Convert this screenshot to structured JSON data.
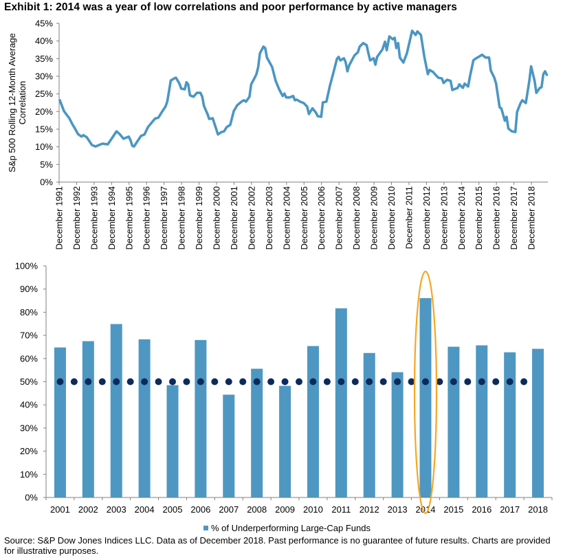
{
  "title": "Exhibit 1: 2014 was a year of low correlations and poor performance by active managers",
  "colors": {
    "line": "#4a96c3",
    "bar": "#4e97c2",
    "dots": "#0d2a5c",
    "highlight": "#f5a623",
    "axis": "#7f7f7f"
  },
  "chart_data": [
    {
      "type": "line",
      "title": "",
      "xlabel": "",
      "ylabel": "S&p 500 Rolling 12-Month Average Correlation",
      "ylim": [
        0,
        45
      ],
      "yticks": [
        "0%",
        "5%",
        "10%",
        "15%",
        "20%",
        "25%",
        "30%",
        "35%",
        "40%",
        "45%"
      ],
      "ytick_values": [
        0,
        5,
        10,
        15,
        20,
        25,
        30,
        35,
        40,
        45
      ],
      "xticks": [
        "December 1991",
        "December 1992",
        "December 1993",
        "December 1994",
        "December 1995",
        "December 1996",
        "December 1997",
        "December 1998",
        "December 1999",
        "December 2000",
        "December 2001",
        "December 2002",
        "December 2003",
        "December 2004",
        "December 2005",
        "December 2006",
        "December 2007",
        "December 2008",
        "December 2009",
        "December 2010",
        "December 2011",
        "December 2012",
        "December 2013",
        "December 2014",
        "December 2015",
        "December 2016",
        "December 2017",
        "December 2018"
      ],
      "xtick_years": [
        1991.92,
        1992.92,
        1993.92,
        1994.92,
        1995.92,
        1996.92,
        1997.92,
        1998.92,
        1999.92,
        2000.92,
        2001.92,
        2002.92,
        2003.92,
        2004.92,
        2005.92,
        2006.92,
        2007.92,
        2008.92,
        2009.92,
        2010.92,
        2011.92,
        2012.92,
        2013.92,
        2014.92,
        2015.92,
        2016.92,
        2017.92,
        2018.92
      ],
      "xlim": [
        1991.92,
        2019.86
      ],
      "grid": false,
      "series": [
        {
          "name": "S&P 500 Rolling 12-Month Average Correlation",
          "x": [
            1991.96,
            1992.2,
            1992.5,
            1992.7,
            1992.8,
            1993.0,
            1993.2,
            1993.3,
            1993.5,
            1993.8,
            1994.0,
            1994.4,
            1994.7,
            1995.0,
            1995.2,
            1995.4,
            1995.6,
            1995.9,
            1996.0,
            1996.1,
            1996.2,
            1996.6,
            1996.8,
            1997.0,
            1997.4,
            1997.6,
            1997.8,
            1998.0,
            1998.1,
            1998.2,
            1998.3,
            1998.5,
            1998.6,
            1998.8,
            1998.9,
            1999.1,
            1999.2,
            1999.3,
            1999.4,
            1999.6,
            1999.8,
            2000.0,
            2000.1,
            2000.2,
            2000.4,
            2000.5,
            2000.7,
            2001.0,
            2001.2,
            2001.35,
            2001.5,
            2001.7,
            2001.9,
            2002.1,
            2002.4,
            2002.5,
            2002.6,
            2002.8,
            2002.9,
            2003.1,
            2003.2,
            2003.3,
            2003.4,
            2003.6,
            2003.7,
            2003.8,
            2004.0,
            2004.1,
            2004.3,
            2004.5,
            2004.7,
            2004.8,
            2004.9,
            2005.1,
            2005.3,
            2005.4,
            2005.5,
            2005.7,
            2005.9,
            2006.1,
            2006.2,
            2006.4,
            2006.6,
            2006.7,
            2006.9,
            2007.0,
            2007.2,
            2007.4,
            2007.6,
            2007.8,
            2007.9,
            2008.0,
            2008.2,
            2008.3,
            2008.4,
            2008.5,
            2008.8,
            2009.0,
            2009.1,
            2009.3,
            2009.5,
            2009.6,
            2009.7,
            2009.9,
            2010.0,
            2010.1,
            2010.4,
            2010.55,
            2010.65,
            2010.8,
            2011.0,
            2011.1,
            2011.2,
            2011.3,
            2011.4,
            2011.6,
            2011.8,
            2012.1,
            2012.3,
            2012.4,
            2012.6,
            2012.8,
            2013.0,
            2013.1,
            2013.3,
            2013.4,
            2013.6,
            2013.8,
            2013.9,
            2014.1,
            2014.3,
            2014.4,
            2014.7,
            2014.8,
            2015.0,
            2015.1,
            2015.3,
            2015.4,
            2015.6,
            2015.7,
            2015.9,
            2016.1,
            2016.3,
            2016.5,
            2016.6,
            2016.8,
            2016.9,
            2017.1,
            2017.2,
            2017.4,
            2017.5,
            2017.6,
            2017.8,
            2018.0,
            2018.1,
            2018.3,
            2018.4,
            2018.6,
            2018.8,
            2018.9,
            2019.1,
            2019.2,
            2019.4,
            2019.5,
            2019.6,
            2019.7,
            2019.8
          ],
          "values": [
            23.2,
            20.1,
            18.1,
            16.2,
            15.4,
            13.6,
            12.9,
            13.3,
            12.7,
            10.5,
            10.1,
            10.9,
            10.7,
            12.9,
            14.4,
            13.5,
            12.3,
            12.9,
            11.9,
            10.3,
            10.1,
            13.1,
            13.5,
            15.6,
            18.0,
            18.3,
            19.9,
            21.4,
            22.8,
            25.7,
            28.8,
            29.4,
            29.6,
            27.9,
            26.5,
            26.3,
            28.3,
            27.7,
            24.6,
            24.2,
            25.3,
            25.3,
            24.2,
            21.6,
            19.3,
            17.9,
            18.1,
            13.5,
            14.2,
            14.4,
            15.6,
            16.2,
            20.1,
            21.8,
            23.0,
            23.2,
            22.8,
            24.2,
            27.7,
            29.6,
            30.6,
            32.6,
            36.5,
            38.4,
            38.0,
            35.3,
            33.5,
            32.6,
            28.7,
            26.3,
            24.4,
            25.1,
            24.0,
            24.0,
            24.4,
            23.2,
            23.4,
            22.8,
            22.4,
            21.4,
            19.3,
            20.9,
            19.7,
            18.7,
            18.5,
            22.6,
            22.8,
            27.3,
            31.0,
            34.9,
            35.5,
            34.5,
            35.1,
            34.0,
            31.4,
            33.1,
            35.9,
            36.8,
            38.4,
            39.4,
            38.8,
            36.5,
            34.5,
            35.1,
            33.3,
            35.5,
            37.6,
            39.8,
            37.4,
            41.3,
            40.5,
            40.9,
            38.0,
            39.4,
            35.3,
            33.9,
            36.5,
            42.9,
            41.7,
            42.7,
            41.7,
            35.5,
            30.6,
            31.8,
            31.2,
            30.6,
            29.6,
            29.4,
            28.1,
            29.0,
            28.7,
            26.1,
            26.7,
            27.7,
            26.7,
            27.9,
            27.1,
            29.8,
            34.5,
            34.9,
            35.5,
            36.1,
            35.3,
            35.3,
            31.6,
            29.6,
            27.9,
            21.2,
            20.9,
            17.4,
            18.5,
            15.2,
            14.4,
            14.2,
            19.9,
            22.4,
            23.2,
            22.4,
            28.7,
            32.8,
            28.7,
            25.3,
            26.7,
            26.9,
            30.6,
            31.4,
            30.4
          ]
        }
      ]
    },
    {
      "type": "bar",
      "title": "",
      "xlabel": "",
      "ylabel": "",
      "ylim": [
        0,
        100
      ],
      "yticks": [
        "0%",
        "10%",
        "20%",
        "30%",
        "40%",
        "50%",
        "60%",
        "70%",
        "80%",
        "90%",
        "100%"
      ],
      "ytick_values": [
        0,
        10,
        20,
        30,
        40,
        50,
        60,
        70,
        80,
        90,
        100
      ],
      "categories": [
        "2001",
        "2002",
        "2003",
        "2004",
        "2005",
        "2006",
        "2007",
        "2008",
        "2009",
        "2010",
        "2011",
        "2012",
        "2013",
        "2014",
        "2015",
        "2016",
        "2017",
        "2018"
      ],
      "grid": false,
      "legend": "bottom-center",
      "series": [
        {
          "name": "% of Underperforming Large-Cap Funds",
          "values": [
            64.8,
            67.5,
            74.9,
            68.3,
            48.5,
            68.0,
            44.4,
            55.6,
            48.2,
            65.4,
            81.7,
            62.4,
            54.1,
            86.1,
            65.1,
            65.7,
            62.7,
            64.2
          ]
        }
      ],
      "reference_line": {
        "style": "dotted",
        "value": 50,
        "label": ""
      },
      "highlight": {
        "category": "2014",
        "shape": "ellipse"
      }
    }
  ],
  "legend_label": "% of Underperforming Large-Cap Funds",
  "source": "Source: S&P Dow Jones Indices LLC. Data as of December 2018. Past performance is no guarantee of future results. Charts are provided for illustrative purposes."
}
